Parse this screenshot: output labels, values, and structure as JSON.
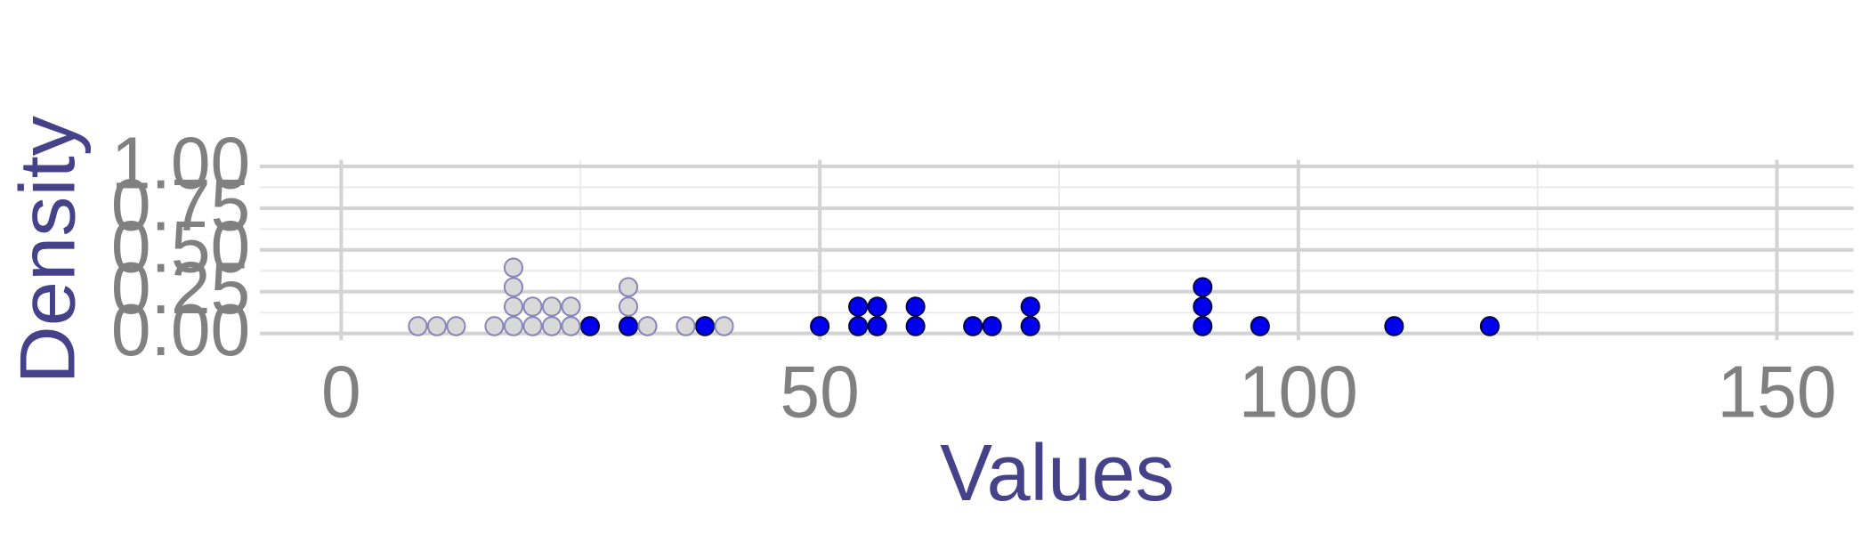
{
  "chart_data": {
    "type": "dotplot",
    "x_label": "Values",
    "y_label": "Density",
    "xlim": [
      -8.5,
      158
    ],
    "xticks": [
      0,
      50,
      100,
      150
    ],
    "ylim": [
      -0.04,
      1.04
    ],
    "yticks": [
      {
        "value": 0,
        "label": "0.00"
      },
      {
        "value": 0.25,
        "label": "0.25"
      },
      {
        "value": 0.5,
        "label": "0.50"
      },
      {
        "value": 0.75,
        "label": "0.75"
      },
      {
        "value": 1,
        "label": "1.00"
      }
    ],
    "grid": true,
    "series": [
      {
        "color": "#0000ee",
        "stroke": "#00004d",
        "x": [
          26,
          30,
          38,
          50,
          54,
          54,
          56,
          56,
          60,
          60,
          66,
          68,
          72,
          72,
          90,
          90,
          90,
          96,
          110,
          120
        ]
      },
      {
        "color": "#d9d9d9",
        "stroke": "#8a85b8",
        "x": [
          8,
          10,
          12,
          16,
          18,
          18,
          18,
          18,
          20,
          20,
          22,
          22,
          24,
          24,
          30,
          30,
          32,
          36,
          40
        ]
      }
    ]
  }
}
